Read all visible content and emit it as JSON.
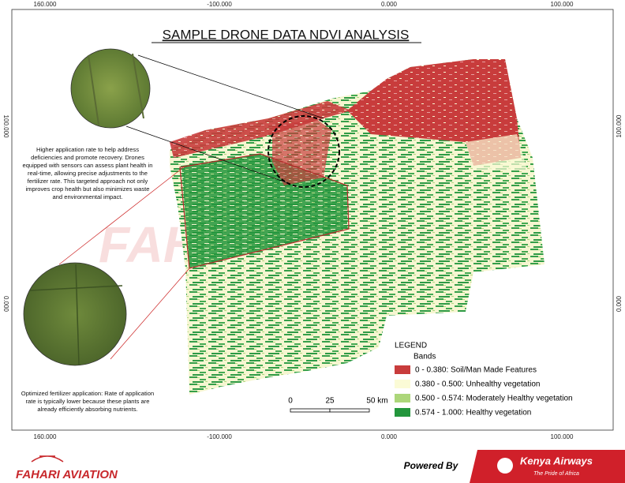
{
  "title": "SAMPLE DRONE DATA NDVI ANALYSIS",
  "grid_labels": {
    "top": [
      "160.000",
      "-100.000",
      "0.000",
      "100.000"
    ],
    "bottom": [
      "160.000",
      "-100.000",
      "0.000",
      "100.000"
    ],
    "left": [
      "100.000",
      "0.000"
    ],
    "right": [
      "100.000",
      "0.000"
    ]
  },
  "annotations": [
    "Higher application rate to help address deficiencies and promote recovery. Drones equipped with sensors can assess plant health in real-time, allowing precise adjustments to the fertilizer rate. This targeted approach not only improves crop health but also minimizes waste and environmental impact.",
    "Optimized fertilizer application: Rate of application rate is typically lower because these plants are already efficiently absorbing nutrients."
  ],
  "watermark": "FAHARI AVIATION",
  "legend": {
    "title": "LEGEND",
    "subtitle": "Bands",
    "items": [
      {
        "label": "0 - 0.380: Soil/Man Made Features",
        "color": "#c83c3c"
      },
      {
        "label": "0.380 - 0.500: Unhealthy vegetation",
        "color": "#fbfbd6"
      },
      {
        "label": "0.500 - 0.574: Moderately Healthy vegetation",
        "color": "#acd67a"
      },
      {
        "label": "0.574 - 1.000: Healthy vegetation",
        "color": "#23963c"
      }
    ]
  },
  "scale_bar": [
    "0",
    "25",
    "50 km"
  ],
  "footer": {
    "logo": "FAHARI AVIATION",
    "powered_by": "Powered By",
    "airline": "Kenya Airways",
    "airline_tagline": "The Pride of Africa"
  }
}
